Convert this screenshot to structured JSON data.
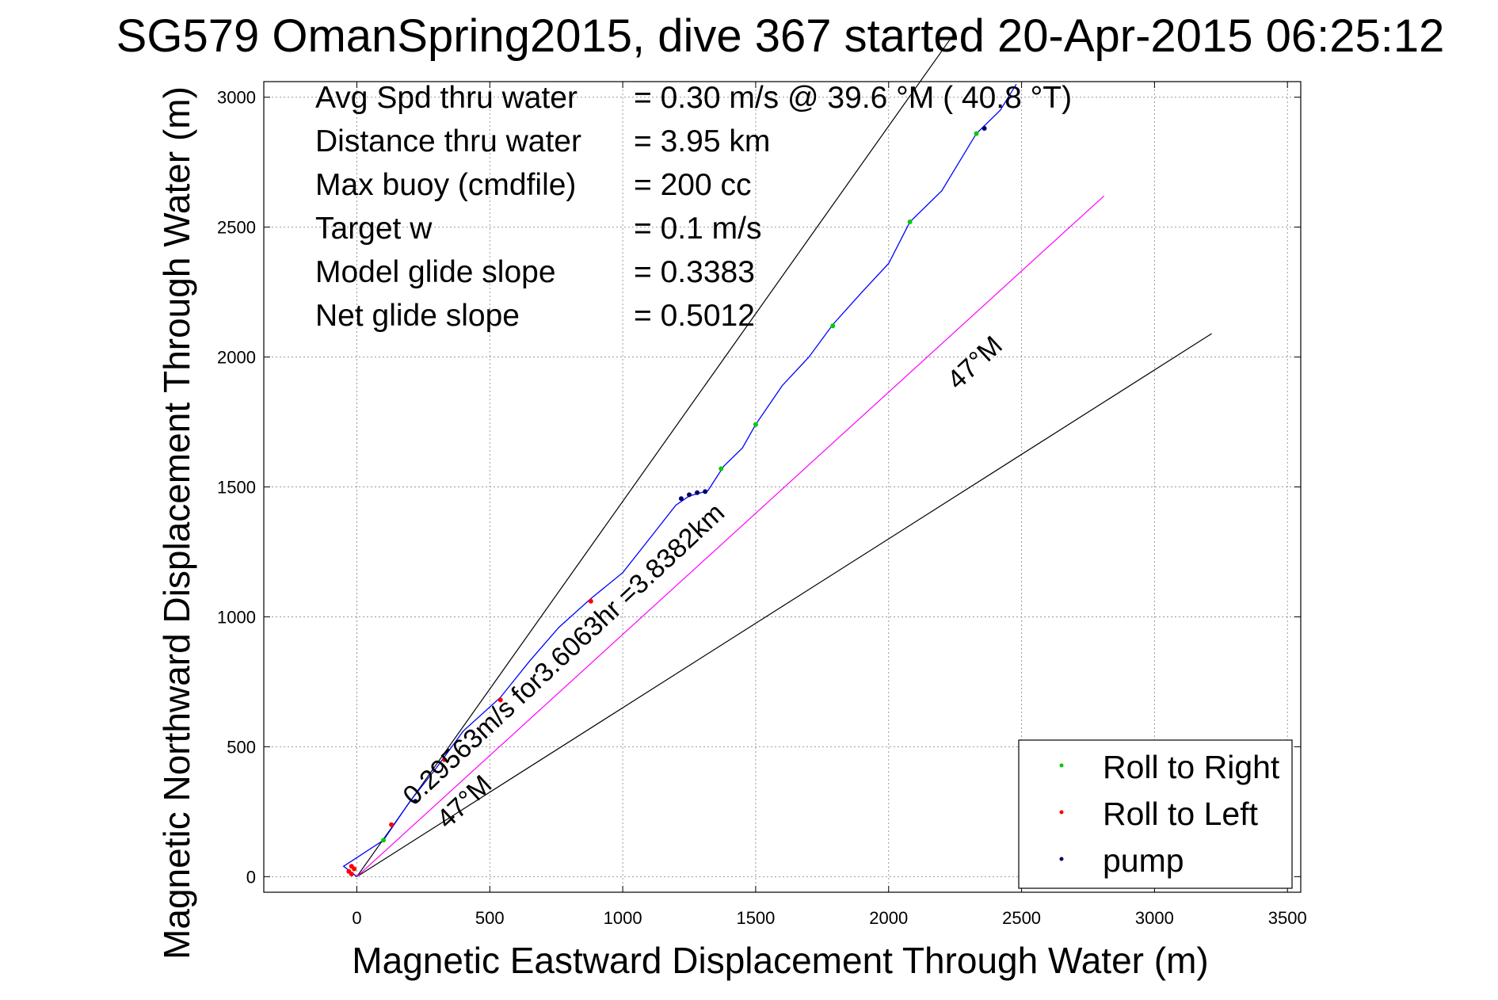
{
  "chart_data": {
    "type": "line",
    "title": "SG579 OmanSpring2015, dive 367 started 20-Apr-2015 06:25:12",
    "xlabel": "Magnetic Eastward Displacement Through Water (m)",
    "ylabel": "Magnetic Northward Displacement Through Water (m)",
    "xlim": [
      -350,
      3550
    ],
    "ylim": [
      -60,
      3060
    ],
    "x_ticks": [
      0,
      500,
      1000,
      1500,
      2000,
      2500,
      3000,
      3500
    ],
    "y_ticks": [
      0,
      500,
      1000,
      1500,
      2000,
      2500,
      3000
    ],
    "grid": true,
    "legend_position": "bottom-right",
    "annotations": [
      {
        "label": "Avg Spd thru water",
        "value": "=  0.30 m/s @  39.6 °M ( 40.8 °T)"
      },
      {
        "label": "Distance thru water",
        "value": "=  3.95 km"
      },
      {
        "label": "Max buoy (cmdfile)",
        "value": "= 200 cc"
      },
      {
        "label": "Target w",
        "value": "= 0.1 m/s"
      },
      {
        "label": "Model glide slope",
        "value": "= 0.3383"
      },
      {
        "label": "Net glide slope",
        "value": "= 0.5012"
      }
    ],
    "reference_lines": [
      {
        "x": [
          0,
          2250
        ],
        "y": [
          0,
          3250
        ],
        "color": "#000000"
      },
      {
        "x": [
          0,
          3215
        ],
        "y": [
          0,
          2090
        ],
        "color": "#000000"
      },
      {
        "x": [
          0,
          2810
        ],
        "y": [
          0,
          2620
        ],
        "color": "#ff00ff"
      }
    ],
    "line_labels": [
      {
        "text": "0.29563m/s for3.6063hr =3.8382km",
        "x": 213,
        "y": 270,
        "angle_deg": 43
      },
      {
        "text": "47°M",
        "x": 340,
        "y": 180,
        "angle_deg": 43
      },
      {
        "text": "47°M",
        "x": 2260,
        "y": 1870,
        "angle_deg": 43
      }
    ],
    "series": [
      {
        "name": "track",
        "color": "#0000ff",
        "x": [
          0,
          -50,
          -20,
          100,
          200,
          300,
          400,
          540,
          650,
          760,
          880,
          1000,
          1100,
          1200,
          1250,
          1320,
          1380,
          1450,
          1500,
          1600,
          1700,
          1790,
          1900,
          2000,
          2080,
          2200,
          2330,
          2420,
          2480
        ],
        "y": [
          0,
          40,
          60,
          140,
          290,
          420,
          560,
          690,
          830,
          960,
          1070,
          1170,
          1300,
          1430,
          1465,
          1485,
          1580,
          1650,
          1740,
          1890,
          2000,
          2125,
          2250,
          2360,
          2520,
          2640,
          2860,
          2950,
          3050
        ]
      }
    ],
    "markers": [
      {
        "name": "Roll to Right",
        "color": "#00cc00",
        "points": [
          [
            100,
            140
          ],
          [
            1370,
            1570
          ],
          [
            1500,
            1740
          ],
          [
            1790,
            2120
          ],
          [
            2080,
            2520
          ],
          [
            2330,
            2860
          ]
        ]
      },
      {
        "name": "Roll to Left",
        "color": "#ff0000",
        "points": [
          [
            -10,
            30
          ],
          [
            -20,
            40
          ],
          [
            -30,
            20
          ],
          [
            -20,
            10
          ],
          [
            130,
            200
          ],
          [
            330,
            450
          ],
          [
            540,
            680
          ],
          [
            880,
            1060
          ]
        ]
      },
      {
        "name": "pump",
        "color": "#000066",
        "points": [
          [
            220,
            290
          ],
          [
            1220,
            1455
          ],
          [
            1250,
            1470
          ],
          [
            1280,
            1478
          ],
          [
            1310,
            1482
          ],
          [
            2360,
            2880
          ]
        ]
      }
    ]
  }
}
